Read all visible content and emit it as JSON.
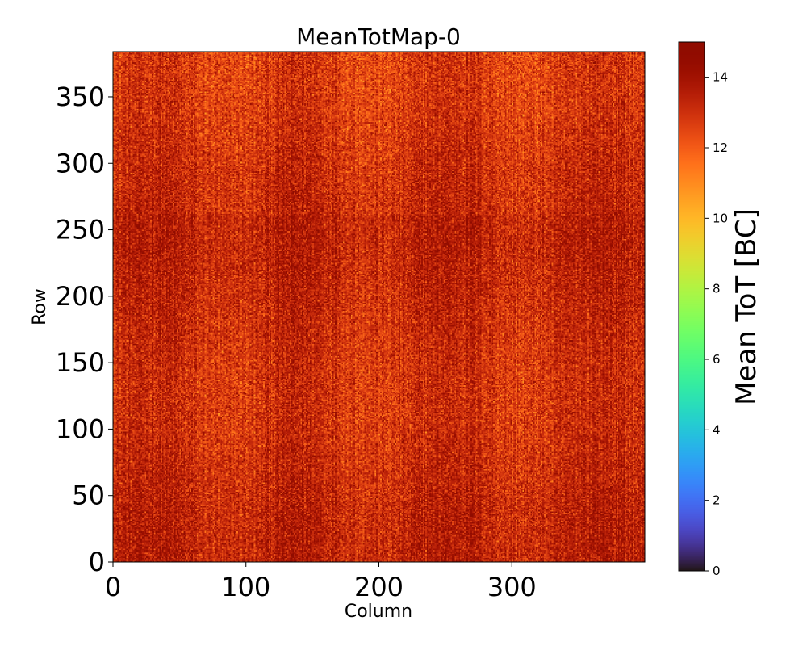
{
  "chart_data": {
    "type": "heatmap",
    "title": "MeanTotMap-0",
    "xlabel": "Column",
    "ylabel": "Row",
    "colorbar_label": "Mean ToT [BC]",
    "colormap": "turbo",
    "x_range": [
      0,
      400
    ],
    "y_range": [
      0,
      384
    ],
    "value_range": [
      0,
      15
    ],
    "x_ticks": [
      0,
      100,
      200,
      300
    ],
    "y_ticks": [
      0,
      50,
      100,
      150,
      200,
      250,
      300,
      350
    ],
    "colorbar_ticks": [
      0,
      2,
      4,
      6,
      8,
      10,
      12,
      14
    ],
    "typical_value": 13.2,
    "value_spread": [
      10.5,
      15
    ]
  },
  "colors": {
    "low": "#30123b",
    "high": "#7a0403",
    "typical": "#c93a0a"
  }
}
